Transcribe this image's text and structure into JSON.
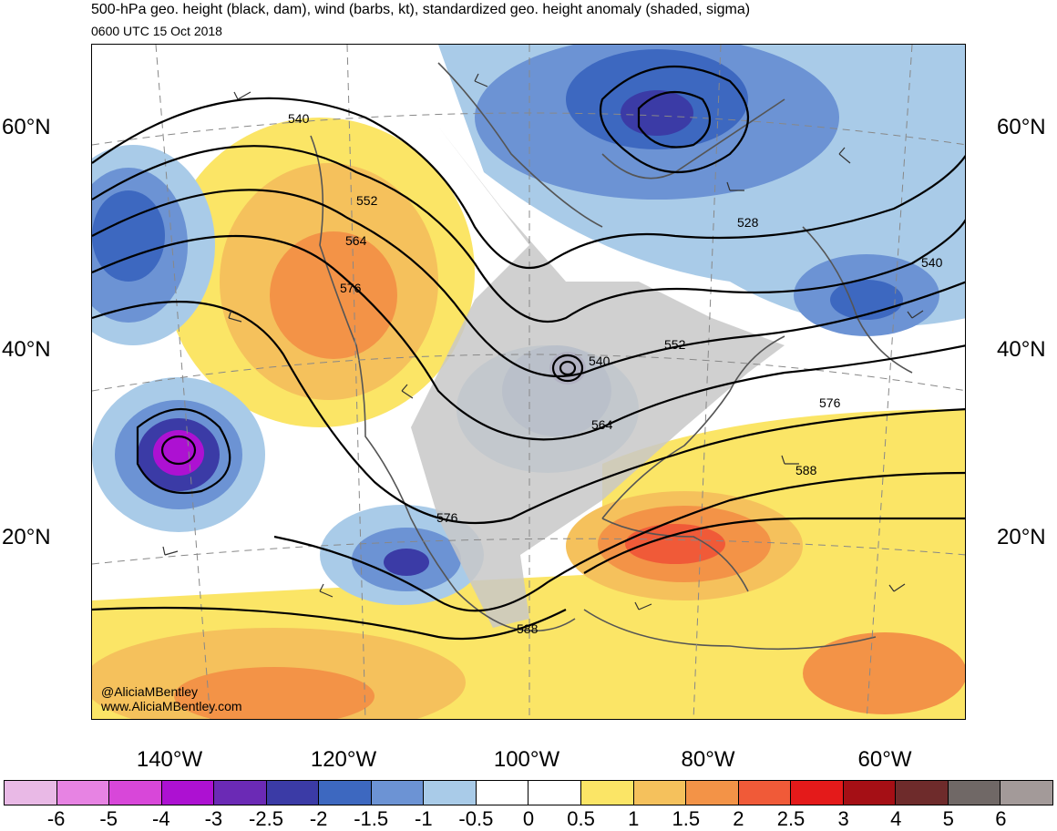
{
  "header": {
    "title": "500-hPa geo. height (black, dam), wind (barbs, kt), standardized geo. height anomaly (shaded, sigma)",
    "valid_time": "0600 UTC 15 Oct 2018"
  },
  "map": {
    "lat_labels": [
      "60°N",
      "40°N",
      "20°N"
    ],
    "lon_labels": [
      "140°W",
      "120°W",
      "100°W",
      "80°W",
      "60°W"
    ],
    "contour_labels": [
      "540",
      "552",
      "564",
      "576",
      "528",
      "540",
      "552",
      "540",
      "564",
      "576",
      "576",
      "588",
      "588"
    ],
    "credit_handle": "@AliciaMBentley",
    "credit_url": "www.AliciaMBentley.com"
  },
  "colorbar": {
    "labels": [
      "-6",
      "-5",
      "-4",
      "-3",
      "-2.5",
      "-2",
      "-1.5",
      "-1",
      "-0.5",
      "0",
      "0.5",
      "1",
      "1.5",
      "2",
      "2.5",
      "3",
      "4",
      "5",
      "6"
    ],
    "colors": [
      "#e9b9e6",
      "#e783e3",
      "#d847d9",
      "#ad11d2",
      "#6b2ab5",
      "#3b3ba6",
      "#3d68c0",
      "#6c93d4",
      "#a9cbe8",
      "#ffffff",
      "#ffffff",
      "#fbe566",
      "#f5c15c",
      "#f39347",
      "#f05a38",
      "#e41a1a",
      "#a50f15",
      "#6e2b2b",
      "#706866",
      "#a39a99"
    ]
  }
}
